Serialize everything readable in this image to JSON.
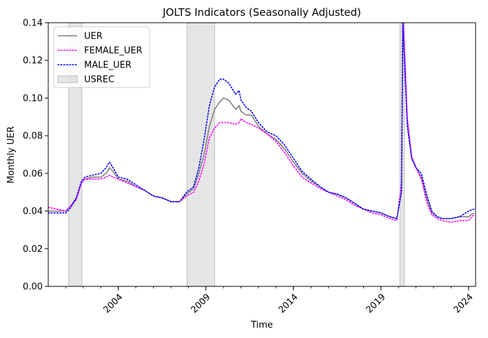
{
  "chart_data": {
    "type": "line",
    "title": "JOLTS Indicators (Seasonally Adjusted)",
    "xlabel": "Time",
    "ylabel": "Monthly UER",
    "xlim": [
      2000.0,
      2024.4
    ],
    "ylim": [
      0.0,
      0.14
    ],
    "x_ticks": [
      2004,
      2009,
      2014,
      2019,
      2024
    ],
    "x_tick_labels": [
      "2004",
      "2009",
      "2014",
      "2019",
      "2024"
    ],
    "y_ticks": [
      0.0,
      0.02,
      0.04,
      0.06,
      0.08,
      0.1,
      0.12,
      0.14
    ],
    "y_tick_labels": [
      "0.00",
      "0.02",
      "0.04",
      "0.06",
      "0.08",
      "0.10",
      "0.12",
      "0.14"
    ],
    "grid": false,
    "legend_position": "top-left",
    "recessions": {
      "name": "USREC",
      "color": "#d3d3d3",
      "periods": [
        [
          2001.17,
          2001.92
        ],
        [
          2007.92,
          2009.5
        ],
        [
          2020.08,
          2020.33
        ]
      ]
    },
    "series": [
      {
        "name": "UER",
        "color": "#808080",
        "style": "solid",
        "x": [
          2000.0,
          2000.5,
          2001.0,
          2001.3,
          2001.6,
          2001.9,
          2002.1,
          2002.5,
          2003.0,
          2003.3,
          2003.5,
          2003.7,
          2004.0,
          2004.5,
          2005.0,
          2005.5,
          2006.0,
          2006.5,
          2007.0,
          2007.5,
          2007.9,
          2008.3,
          2008.6,
          2008.9,
          2009.2,
          2009.5,
          2009.8,
          2010.0,
          2010.3,
          2010.7,
          2010.9,
          2011.0,
          2011.3,
          2011.6,
          2012.0,
          2012.5,
          2013.0,
          2013.5,
          2014.0,
          2014.5,
          2015.0,
          2015.5,
          2016.0,
          2016.5,
          2017.0,
          2017.5,
          2018.0,
          2018.5,
          2019.0,
          2019.5,
          2019.9,
          2020.17,
          2020.25,
          2020.35,
          2020.5,
          2020.75,
          2021.0,
          2021.3,
          2021.6,
          2021.9,
          2022.2,
          2022.5,
          2023.0,
          2023.5,
          2024.0,
          2024.3
        ],
        "values": [
          0.04,
          0.04,
          0.04,
          0.043,
          0.047,
          0.055,
          0.057,
          0.058,
          0.058,
          0.06,
          0.063,
          0.061,
          0.057,
          0.056,
          0.053,
          0.051,
          0.048,
          0.047,
          0.045,
          0.045,
          0.049,
          0.052,
          0.06,
          0.07,
          0.085,
          0.094,
          0.098,
          0.1,
          0.099,
          0.094,
          0.096,
          0.093,
          0.091,
          0.091,
          0.085,
          0.081,
          0.078,
          0.073,
          0.066,
          0.06,
          0.056,
          0.053,
          0.05,
          0.049,
          0.047,
          0.044,
          0.041,
          0.04,
          0.039,
          0.037,
          0.036,
          0.05,
          0.14,
          0.12,
          0.087,
          0.068,
          0.063,
          0.058,
          0.047,
          0.039,
          0.037,
          0.036,
          0.036,
          0.037,
          0.037,
          0.039
        ]
      },
      {
        "name": "FEMALE_UER",
        "color": "#ff00ff",
        "style": "dotted",
        "x": [
          2000.0,
          2000.5,
          2001.0,
          2001.3,
          2001.6,
          2001.9,
          2002.1,
          2002.5,
          2003.0,
          2003.3,
          2003.5,
          2003.7,
          2004.0,
          2004.5,
          2005.0,
          2005.5,
          2006.0,
          2006.5,
          2007.0,
          2007.5,
          2007.9,
          2008.3,
          2008.6,
          2008.9,
          2009.2,
          2009.5,
          2009.8,
          2010.0,
          2010.3,
          2010.7,
          2010.9,
          2011.0,
          2011.3,
          2011.6,
          2012.0,
          2012.5,
          2013.0,
          2013.5,
          2014.0,
          2014.5,
          2015.0,
          2015.5,
          2016.0,
          2016.5,
          2017.0,
          2017.5,
          2018.0,
          2018.5,
          2019.0,
          2019.5,
          2019.9,
          2020.17,
          2020.25,
          2020.35,
          2020.5,
          2020.75,
          2021.0,
          2021.3,
          2021.6,
          2021.9,
          2022.2,
          2022.5,
          2023.0,
          2023.5,
          2024.0,
          2024.3
        ],
        "values": [
          0.042,
          0.041,
          0.04,
          0.043,
          0.046,
          0.055,
          0.057,
          0.057,
          0.057,
          0.058,
          0.059,
          0.058,
          0.057,
          0.055,
          0.053,
          0.051,
          0.048,
          0.047,
          0.045,
          0.045,
          0.048,
          0.05,
          0.056,
          0.065,
          0.079,
          0.084,
          0.087,
          0.087,
          0.087,
          0.086,
          0.087,
          0.089,
          0.087,
          0.086,
          0.084,
          0.081,
          0.077,
          0.071,
          0.064,
          0.058,
          0.055,
          0.052,
          0.05,
          0.048,
          0.046,
          0.043,
          0.041,
          0.039,
          0.038,
          0.036,
          0.035,
          0.055,
          0.145,
          0.125,
          0.09,
          0.069,
          0.063,
          0.057,
          0.045,
          0.038,
          0.036,
          0.035,
          0.034,
          0.035,
          0.035,
          0.038
        ]
      },
      {
        "name": "MALE_UER",
        "color": "#0000ff",
        "style": "dotted",
        "x": [
          2000.0,
          2000.5,
          2001.0,
          2001.3,
          2001.6,
          2001.9,
          2002.1,
          2002.5,
          2003.0,
          2003.3,
          2003.5,
          2003.7,
          2004.0,
          2004.5,
          2005.0,
          2005.5,
          2006.0,
          2006.5,
          2007.0,
          2007.5,
          2007.9,
          2008.3,
          2008.6,
          2008.9,
          2009.2,
          2009.5,
          2009.8,
          2010.0,
          2010.3,
          2010.7,
          2010.9,
          2011.0,
          2011.3,
          2011.6,
          2012.0,
          2012.5,
          2013.0,
          2013.5,
          2014.0,
          2014.5,
          2015.0,
          2015.5,
          2016.0,
          2016.5,
          2017.0,
          2017.5,
          2018.0,
          2018.5,
          2019.0,
          2019.5,
          2019.9,
          2020.17,
          2020.25,
          2020.35,
          2020.5,
          2020.75,
          2021.0,
          2021.3,
          2021.6,
          2021.9,
          2022.2,
          2022.5,
          2023.0,
          2023.5,
          2024.0,
          2024.3
        ],
        "values": [
          0.039,
          0.039,
          0.039,
          0.042,
          0.047,
          0.056,
          0.058,
          0.059,
          0.06,
          0.063,
          0.066,
          0.063,
          0.058,
          0.057,
          0.054,
          0.051,
          0.048,
          0.047,
          0.045,
          0.045,
          0.05,
          0.053,
          0.063,
          0.078,
          0.096,
          0.106,
          0.11,
          0.11,
          0.108,
          0.102,
          0.104,
          0.099,
          0.095,
          0.093,
          0.087,
          0.082,
          0.08,
          0.075,
          0.068,
          0.061,
          0.057,
          0.053,
          0.05,
          0.049,
          0.047,
          0.044,
          0.041,
          0.04,
          0.039,
          0.037,
          0.036,
          0.05,
          0.14,
          0.118,
          0.085,
          0.068,
          0.063,
          0.06,
          0.049,
          0.04,
          0.037,
          0.036,
          0.036,
          0.037,
          0.04,
          0.041
        ]
      }
    ]
  }
}
